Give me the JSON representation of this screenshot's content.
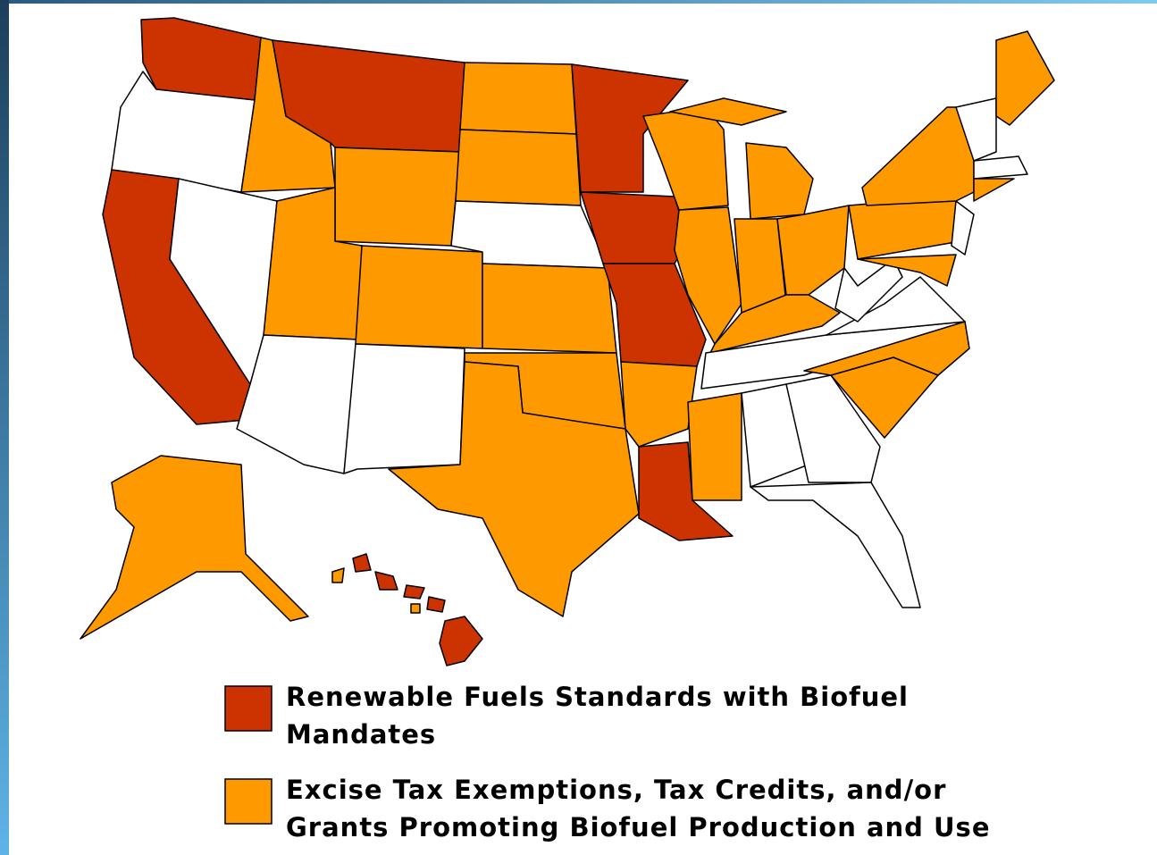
{
  "legend": [
    {
      "color": "#cc3300",
      "lines": [
        "Renewable Fuels Standards with Biofuel",
        "Mandates"
      ]
    },
    {
      "color": "#ff9900",
      "lines": [
        "Excise Tax Exemptions, Tax Credits, and/or",
        "Grants Promoting Biofuel Production and Use"
      ]
    }
  ]
}
